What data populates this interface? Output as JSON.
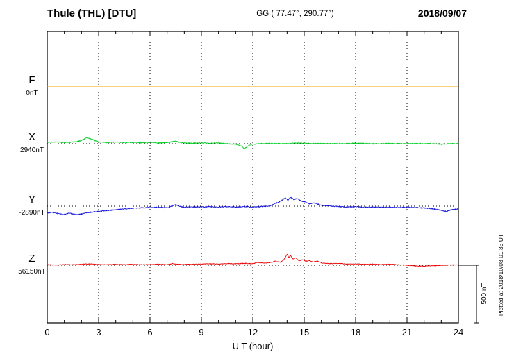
{
  "header": {
    "station_title": "Thule (THL)  [DTU]",
    "geo_coords": "GG ( 77.47°, 290.77°)",
    "date": "2018/09/07"
  },
  "plot": {
    "x_label": "U T (hour)",
    "x_ticks": [
      0,
      3,
      6,
      9,
      12,
      15,
      18,
      21,
      24
    ],
    "x_range": [
      0,
      24
    ],
    "scale_bar_label": "500 nT",
    "scale_bar_nT": 500,
    "plotted_note": "Plotted at 2018/10/08 01:35 UT"
  },
  "chart_data": {
    "type": "line",
    "x_unit": "hour",
    "x_range": [
      0,
      24
    ],
    "scale_nT_per_div": 500,
    "grid": "dotted",
    "series": [
      {
        "name": "F",
        "baseline_label": "0nT",
        "baseline_value_nT": 0,
        "color": "#f0a500",
        "noise_nT": 0,
        "points": [
          [
            0,
            0
          ],
          [
            24,
            0
          ]
        ]
      },
      {
        "name": "X",
        "baseline_label": "2940nT",
        "baseline_value_nT": 2940,
        "color": "#00cc22",
        "noise_nT": 3.5,
        "points": [
          [
            0,
            12
          ],
          [
            0.5,
            16
          ],
          [
            1,
            10
          ],
          [
            1.5,
            14
          ],
          [
            2,
            26
          ],
          [
            2.3,
            52
          ],
          [
            2.6,
            38
          ],
          [
            3,
            16
          ],
          [
            3.5,
            10
          ],
          [
            4,
            14
          ],
          [
            4.5,
            10
          ],
          [
            5,
            12
          ],
          [
            5.5,
            8
          ],
          [
            6,
            12
          ],
          [
            6.5,
            6
          ],
          [
            7,
            10
          ],
          [
            7.5,
            22
          ],
          [
            7.8,
            8
          ],
          [
            8,
            6
          ],
          [
            8.5,
            4
          ],
          [
            9,
            8
          ],
          [
            9.5,
            4
          ],
          [
            10,
            6
          ],
          [
            10.5,
            0
          ],
          [
            11,
            -4
          ],
          [
            11.3,
            -18
          ],
          [
            11.5,
            -42
          ],
          [
            11.8,
            -12
          ],
          [
            12,
            -4
          ],
          [
            12.5,
            0
          ],
          [
            13,
            2
          ],
          [
            14,
            0
          ],
          [
            14.5,
            6
          ],
          [
            15,
            4
          ],
          [
            16,
            2
          ],
          [
            17,
            0
          ],
          [
            18,
            4
          ],
          [
            19,
            0
          ],
          [
            20,
            2
          ],
          [
            21,
            0
          ],
          [
            22,
            2
          ],
          [
            23,
            -4
          ],
          [
            23.5,
            0
          ],
          [
            24,
            2
          ]
        ]
      },
      {
        "name": "Y",
        "baseline_label": "-2890nT",
        "baseline_value_nT": -2890,
        "color": "#1515dd",
        "noise_nT": 3.5,
        "points": [
          [
            0,
            -58
          ],
          [
            0.3,
            -52
          ],
          [
            0.7,
            -66
          ],
          [
            1,
            -72
          ],
          [
            1.3,
            -60
          ],
          [
            1.7,
            -74
          ],
          [
            2,
            -68
          ],
          [
            2.3,
            -56
          ],
          [
            2.7,
            -50
          ],
          [
            3,
            -44
          ],
          [
            3.5,
            -38
          ],
          [
            4,
            -30
          ],
          [
            4.5,
            -24
          ],
          [
            5,
            -18
          ],
          [
            5.5,
            -14
          ],
          [
            6,
            -12
          ],
          [
            6.5,
            -10
          ],
          [
            7,
            -14
          ],
          [
            7.2,
            -4
          ],
          [
            7.5,
            12
          ],
          [
            7.8,
            -4
          ],
          [
            8,
            -10
          ],
          [
            8.5,
            -6
          ],
          [
            9,
            -8
          ],
          [
            9.5,
            -4
          ],
          [
            10,
            -8
          ],
          [
            10.5,
            -4
          ],
          [
            11,
            -8
          ],
          [
            11.5,
            -4
          ],
          [
            12,
            -8
          ],
          [
            12.5,
            -4
          ],
          [
            13,
            2
          ],
          [
            13.3,
            22
          ],
          [
            13.6,
            42
          ],
          [
            13.9,
            72
          ],
          [
            14.05,
            52
          ],
          [
            14.2,
            78
          ],
          [
            14.4,
            58
          ],
          [
            14.6,
            66
          ],
          [
            14.8,
            46
          ],
          [
            15,
            40
          ],
          [
            15.3,
            20
          ],
          [
            15.6,
            28
          ],
          [
            16,
            8
          ],
          [
            16.5,
            2
          ],
          [
            17,
            -4
          ],
          [
            17.5,
            -8
          ],
          [
            18,
            -4
          ],
          [
            18.5,
            -10
          ],
          [
            19,
            -8
          ],
          [
            19.5,
            -10
          ],
          [
            20,
            -8
          ],
          [
            20.5,
            -12
          ],
          [
            21,
            -10
          ],
          [
            21.5,
            -12
          ],
          [
            22,
            -16
          ],
          [
            22.5,
            -22
          ],
          [
            23,
            -36
          ],
          [
            23.3,
            -46
          ],
          [
            23.6,
            -30
          ],
          [
            24,
            -24
          ]
        ]
      },
      {
        "name": "Z",
        "baseline_label": "56150nT",
        "baseline_value_nT": 56150,
        "color": "#ee0000",
        "noise_nT": 2.5,
        "points": [
          [
            0,
            4
          ],
          [
            0.5,
            2
          ],
          [
            1,
            6
          ],
          [
            1.5,
            4
          ],
          [
            2,
            8
          ],
          [
            2.5,
            12
          ],
          [
            3,
            6
          ],
          [
            3.5,
            4
          ],
          [
            4,
            8
          ],
          [
            4.5,
            4
          ],
          [
            5,
            8
          ],
          [
            5.5,
            4
          ],
          [
            6,
            6
          ],
          [
            6.5,
            8
          ],
          [
            7,
            4
          ],
          [
            7.3,
            14
          ],
          [
            7.6,
            8
          ],
          [
            8,
            6
          ],
          [
            8.5,
            8
          ],
          [
            9,
            10
          ],
          [
            9.5,
            12
          ],
          [
            10,
            10
          ],
          [
            10.5,
            14
          ],
          [
            11,
            12
          ],
          [
            11.5,
            16
          ],
          [
            12,
            14
          ],
          [
            12.3,
            24
          ],
          [
            12.6,
            18
          ],
          [
            13,
            22
          ],
          [
            13.3,
            34
          ],
          [
            13.6,
            26
          ],
          [
            13.8,
            44
          ],
          [
            14,
            96
          ],
          [
            14.1,
            66
          ],
          [
            14.2,
            84
          ],
          [
            14.35,
            52
          ],
          [
            14.5,
            64
          ],
          [
            14.7,
            38
          ],
          [
            14.9,
            48
          ],
          [
            15.1,
            34
          ],
          [
            15.3,
            40
          ],
          [
            15.5,
            28
          ],
          [
            15.8,
            34
          ],
          [
            16,
            20
          ],
          [
            16.5,
            14
          ],
          [
            17,
            16
          ],
          [
            17.5,
            10
          ],
          [
            18,
            12
          ],
          [
            18.5,
            8
          ],
          [
            19,
            10
          ],
          [
            19.5,
            6
          ],
          [
            20,
            8
          ],
          [
            20.5,
            4
          ],
          [
            21,
            0
          ],
          [
            21.5,
            -6
          ],
          [
            22,
            -8
          ],
          [
            22.5,
            -4
          ],
          [
            23,
            -2
          ],
          [
            23.5,
            2
          ],
          [
            24,
            4
          ]
        ]
      }
    ]
  }
}
